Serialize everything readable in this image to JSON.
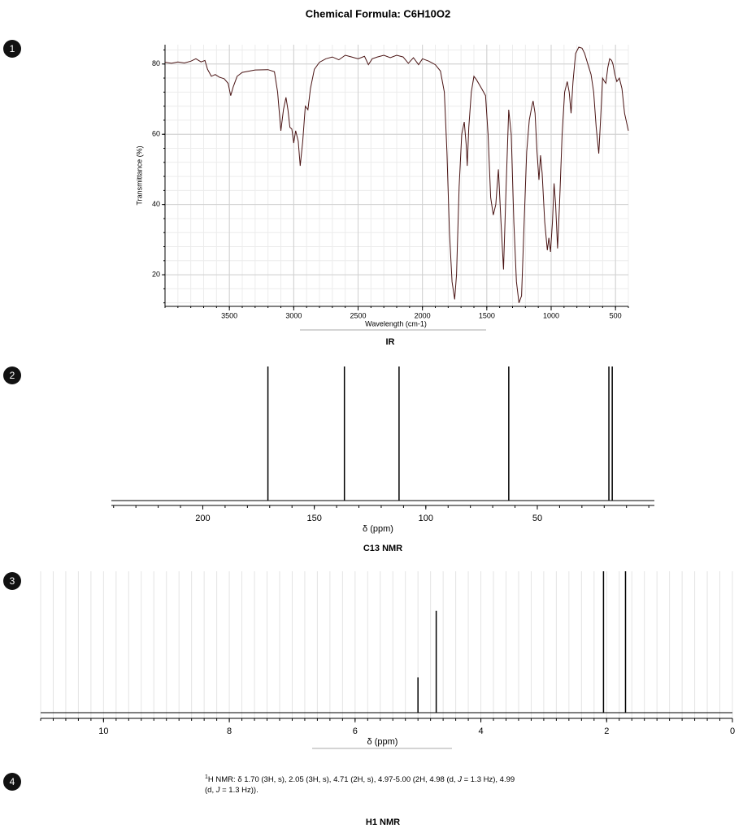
{
  "title": "Chemical Formula: C6H10O2",
  "markers": [
    1,
    2,
    3,
    4
  ],
  "chart_data": [
    {
      "type": "line",
      "title": "IR",
      "xlabel": "Wavelength (cm-1)",
      "ylabel": "Transmittance (%)",
      "color": "#4a1414",
      "xlim": [
        4000,
        400
      ],
      "ylim": [
        11,
        85.5
      ],
      "xticks": [
        3500,
        3000,
        2500,
        2000,
        1500,
        1000,
        500
      ],
      "yticks": [
        20,
        40,
        60,
        80
      ],
      "grid": true,
      "x": [
        4000,
        3950,
        3900,
        3850,
        3800,
        3760,
        3720,
        3690,
        3670,
        3640,
        3610,
        3580,
        3540,
        3510,
        3490,
        3470,
        3440,
        3400,
        3300,
        3200,
        3150,
        3125,
        3100,
        3080,
        3060,
        3045,
        3030,
        3015,
        3000,
        2985,
        2965,
        2950,
        2930,
        2910,
        2890,
        2870,
        2840,
        2800,
        2750,
        2700,
        2650,
        2600,
        2550,
        2500,
        2450,
        2420,
        2390,
        2350,
        2300,
        2250,
        2200,
        2150,
        2110,
        2070,
        2030,
        2000,
        1950,
        1900,
        1860,
        1830,
        1810,
        1790,
        1770,
        1750,
        1735,
        1715,
        1695,
        1675,
        1660,
        1652,
        1640,
        1620,
        1600,
        1580,
        1540,
        1510,
        1490,
        1470,
        1450,
        1430,
        1410,
        1390,
        1370,
        1350,
        1330,
        1310,
        1290,
        1270,
        1250,
        1230,
        1210,
        1190,
        1170,
        1150,
        1140,
        1125,
        1110,
        1095,
        1083,
        1070,
        1050,
        1030,
        1018,
        1005,
        990,
        977,
        965,
        950,
        935,
        915,
        895,
        875,
        860,
        845,
        830,
        810,
        785,
        760,
        740,
        715,
        690,
        670,
        650,
        630,
        615,
        600,
        585,
        575,
        560,
        545,
        530,
        520,
        505,
        490,
        470,
        450,
        430,
        400
      ],
      "values": [
        80.5,
        80.2,
        80.6,
        80.3,
        80.8,
        81.5,
        80.6,
        81,
        78.5,
        76.5,
        77,
        76.3,
        75.8,
        74.5,
        71,
        73.5,
        76.5,
        77.6,
        78.3,
        78.4,
        77.8,
        72,
        61,
        67,
        70.5,
        67,
        62,
        61.5,
        57.5,
        61,
        58,
        51,
        58,
        68,
        67,
        73,
        78.5,
        80.5,
        81.5,
        82,
        81.2,
        82.5,
        82,
        81.5,
        82.2,
        79.8,
        81.5,
        82,
        82.5,
        81.8,
        82.5,
        82,
        80.2,
        81.8,
        79.8,
        81.5,
        80.8,
        79.8,
        78,
        72,
        55,
        32,
        18,
        13,
        20,
        45,
        60,
        63.5,
        57,
        51,
        62,
        72,
        76.5,
        75.5,
        73,
        71,
        60,
        42,
        37,
        40,
        50,
        35,
        21.5,
        45,
        67,
        60,
        35,
        18,
        12,
        14,
        35,
        55,
        64,
        68,
        69.5,
        66,
        55,
        47,
        54,
        49,
        35,
        27,
        30.5,
        26.5,
        35,
        46,
        40,
        27.5,
        40,
        60,
        72,
        75,
        72,
        66,
        75,
        83,
        84.8,
        84.5,
        83,
        80,
        77,
        72,
        62,
        54.5,
        65,
        76,
        75,
        74.5,
        79,
        81.5,
        81,
        80,
        77,
        75,
        76,
        73,
        66,
        61
      ]
    },
    {
      "type": "stem",
      "title": "C13 NMR",
      "xlabel": "δ (ppm)",
      "color": "#000000",
      "xlim": [
        241,
        -2.5
      ],
      "ylim": [
        0,
        1
      ],
      "xticks": [
        200,
        150,
        100,
        50
      ],
      "x": [
        170.8,
        136.5,
        112,
        62.8,
        17.9,
        16.4
      ],
      "values": [
        1,
        1,
        1,
        1,
        1,
        1
      ]
    },
    {
      "type": "stem",
      "title": "H1 NMR",
      "xlabel": "δ (ppm)",
      "color": "#000000",
      "xlim": [
        11,
        0
      ],
      "ylim": [
        0,
        1
      ],
      "xticks": [
        10,
        8,
        6,
        4,
        2,
        0
      ],
      "grid": true,
      "x": [
        5.0,
        4.71,
        2.05,
        1.7
      ],
      "values": [
        0.25,
        0.72,
        1,
        1
      ]
    }
  ],
  "h1_description": [
    "1",
    "H NMR: δ 1.70 (3H, s), 2.05 (3H, s), 4.71 (2H, s), 4.97-5.00 (2H, 4.98 (d, ",
    "J",
    " = 1.3 Hz), 4.99",
    "(d, ",
    "J",
    " = 1.3 Hz))."
  ]
}
